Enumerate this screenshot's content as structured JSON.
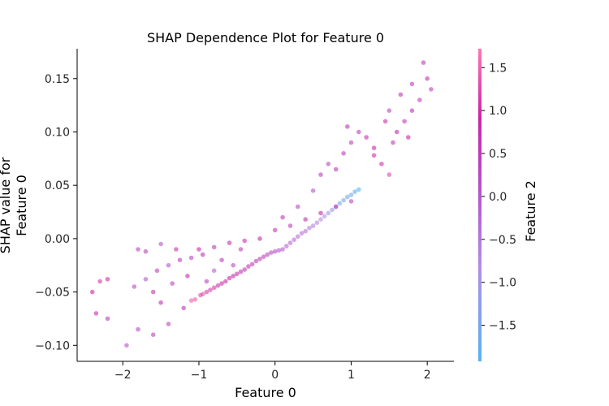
{
  "chart_data": {
    "type": "scatter",
    "title": "SHAP Dependence Plot for Feature 0",
    "xlabel": "Feature 0",
    "ylabel_lines": [
      "SHAP value for",
      "Feature 0"
    ],
    "colorbar_label": "Feature 2",
    "xlim": [
      -2.6,
      2.35
    ],
    "ylim": [
      -0.115,
      0.178
    ],
    "xticks": [
      -2,
      -1,
      0,
      1,
      2
    ],
    "xtick_labels": [
      "−2",
      "−1",
      "0",
      "1",
      "2"
    ],
    "yticks": [
      -0.1,
      -0.05,
      0.0,
      0.05,
      0.1,
      0.15
    ],
    "ytick_labels": [
      "−0.10",
      "−0.05",
      "0.00",
      "0.05",
      "0.10",
      "0.15"
    ],
    "color_range": [
      -1.92,
      1.72
    ],
    "colorbar_ticks": [
      -1.5,
      -1.0,
      -0.5,
      0.0,
      0.5,
      1.0,
      1.5
    ],
    "colorbar_tick_labels": [
      "−1.5",
      "−1.0",
      "−0.5",
      "0.0",
      "0.5",
      "1.0",
      "1.5"
    ],
    "colormap": [
      "#57b3f5",
      "#b48ee0",
      "#b553c9",
      "#c926a6",
      "#ff77b4"
    ],
    "point_opacity": 0.6,
    "series": [
      {
        "points": [
          [
            -1.05,
            -0.057,
            1.4
          ],
          [
            -0.98,
            -0.053,
            1.2
          ],
          [
            -0.9,
            -0.05,
            1.1
          ],
          [
            -0.8,
            -0.046,
            1.0
          ],
          [
            -0.7,
            -0.042,
            0.9
          ],
          [
            -0.6,
            -0.037,
            0.8
          ],
          [
            -0.5,
            -0.033,
            0.6
          ],
          [
            -0.4,
            -0.029,
            0.5
          ],
          [
            -0.3,
            -0.024,
            0.4
          ],
          [
            -0.2,
            -0.019,
            0.3
          ],
          [
            -0.1,
            -0.015,
            0.2
          ],
          [
            0.0,
            -0.012,
            0.0
          ],
          [
            0.1,
            -0.01,
            -0.2
          ],
          [
            0.2,
            -0.004,
            -0.4
          ],
          [
            0.3,
            0.002,
            -0.5
          ],
          [
            0.4,
            0.007,
            -0.6
          ],
          [
            0.5,
            0.012,
            -0.8
          ],
          [
            0.6,
            0.018,
            -1.0
          ],
          [
            0.7,
            0.024,
            -1.2
          ],
          [
            0.8,
            0.03,
            -1.4
          ],
          [
            0.9,
            0.036,
            -1.6
          ],
          [
            1.0,
            0.041,
            -1.7
          ],
          [
            1.1,
            0.046,
            -1.9
          ],
          [
            -1.1,
            -0.058,
            1.5
          ],
          [
            -0.95,
            -0.052,
            1.3
          ],
          [
            -0.85,
            -0.048,
            1.05
          ],
          [
            -0.75,
            -0.044,
            0.95
          ],
          [
            -0.65,
            -0.04,
            0.85
          ],
          [
            -0.55,
            -0.035,
            0.7
          ],
          [
            -0.45,
            -0.031,
            0.55
          ],
          [
            -0.35,
            -0.026,
            0.45
          ],
          [
            -0.25,
            -0.021,
            0.35
          ],
          [
            -0.15,
            -0.017,
            0.25
          ],
          [
            -0.05,
            -0.013,
            0.1
          ],
          [
            0.05,
            -0.011,
            -0.1
          ],
          [
            0.15,
            -0.007,
            -0.3
          ],
          [
            0.25,
            -0.001,
            -0.45
          ],
          [
            0.35,
            0.005,
            -0.55
          ],
          [
            0.45,
            0.01,
            -0.7
          ],
          [
            0.55,
            0.015,
            -0.9
          ],
          [
            0.65,
            0.021,
            -1.1
          ],
          [
            0.75,
            0.027,
            -1.3
          ],
          [
            0.85,
            0.033,
            -1.5
          ],
          [
            0.95,
            0.039,
            -1.65
          ],
          [
            1.05,
            0.044,
            -1.8
          ],
          [
            -1.8,
            -0.01,
            0.2
          ],
          [
            -1.7,
            -0.012,
            0.3
          ],
          [
            -1.5,
            -0.005,
            -0.2
          ],
          [
            -1.3,
            -0.01,
            0.5
          ],
          [
            -1.0,
            -0.01,
            0.8
          ],
          [
            -0.8,
            -0.008,
            0.4
          ],
          [
            -0.6,
            -0.004,
            0.6
          ],
          [
            -0.4,
            -0.002,
            0.9
          ],
          [
            -0.2,
            0.0,
            0.7
          ],
          [
            0.0,
            0.008,
            0.5
          ],
          [
            0.2,
            0.012,
            0.3
          ],
          [
            0.4,
            0.018,
            0.6
          ],
          [
            0.6,
            0.024,
            0.8
          ],
          [
            0.8,
            0.03,
            0.5
          ],
          [
            1.0,
            0.035,
            0.2
          ],
          [
            -2.4,
            -0.05,
            0.8
          ],
          [
            -2.3,
            -0.04,
            1.0
          ],
          [
            -2.2,
            -0.038,
            0.9
          ],
          [
            -2.35,
            -0.07,
            0.6
          ],
          [
            -2.2,
            -0.075,
            0.4
          ],
          [
            -1.95,
            -0.1,
            -0.1
          ],
          [
            -1.8,
            -0.085,
            0.0
          ],
          [
            -1.6,
            -0.09,
            0.3
          ],
          [
            -1.4,
            -0.08,
            0.2
          ],
          [
            -1.2,
            -0.065,
            0.5
          ],
          [
            -1.85,
            -0.045,
            0.1
          ],
          [
            -1.7,
            -0.038,
            -0.2
          ],
          [
            -1.55,
            -0.03,
            0.3
          ],
          [
            -1.4,
            -0.025,
            -0.1
          ],
          [
            -1.25,
            -0.02,
            0.4
          ],
          [
            -1.1,
            -0.018,
            0.2
          ],
          [
            -0.95,
            -0.015,
            0.6
          ],
          [
            -0.8,
            -0.03,
            -0.3
          ],
          [
            -0.7,
            -0.02,
            0.4
          ],
          [
            -0.55,
            -0.025,
            0.1
          ],
          [
            -0.45,
            -0.01,
            0.3
          ],
          [
            -1.6,
            -0.05,
            0.5
          ],
          [
            -1.5,
            -0.06,
            0.7
          ],
          [
            -1.35,
            -0.042,
            0.2
          ],
          [
            -1.15,
            -0.035,
            0.6
          ],
          [
            -0.9,
            -0.04,
            0.3
          ],
          [
            0.1,
            0.02,
            0.4
          ],
          [
            0.3,
            0.03,
            0.2
          ],
          [
            0.5,
            0.045,
            -0.1
          ],
          [
            0.6,
            0.06,
            0.3
          ],
          [
            0.7,
            0.07,
            0.1
          ],
          [
            0.8,
            0.065,
            0.5
          ],
          [
            0.9,
            0.08,
            0.4
          ],
          [
            1.0,
            0.09,
            0.2
          ],
          [
            1.1,
            0.1,
            0.3
          ],
          [
            1.2,
            0.095,
            0.6
          ],
          [
            1.3,
            0.085,
            0.8
          ],
          [
            1.4,
            0.07,
            0.9
          ],
          [
            1.5,
            0.06,
            1.2
          ],
          [
            1.6,
            0.1,
            0.7
          ],
          [
            1.7,
            0.11,
            0.4
          ],
          [
            1.8,
            0.12,
            0.5
          ],
          [
            1.9,
            0.13,
            0.3
          ],
          [
            2.0,
            0.15,
            0.6
          ],
          [
            2.05,
            0.14,
            0.2
          ],
          [
            1.95,
            0.165,
            0.4
          ],
          [
            1.5,
            0.12,
            0.2
          ],
          [
            1.45,
            0.11,
            0.6
          ],
          [
            1.65,
            0.135,
            0.5
          ],
          [
            1.8,
            0.145,
            0.3
          ],
          [
            1.3,
            0.078,
            0.9
          ],
          [
            1.55,
            0.09,
            0.4
          ],
          [
            1.75,
            0.095,
            0.8
          ],
          [
            0.95,
            0.105,
            0.5
          ]
        ]
      }
    ]
  }
}
